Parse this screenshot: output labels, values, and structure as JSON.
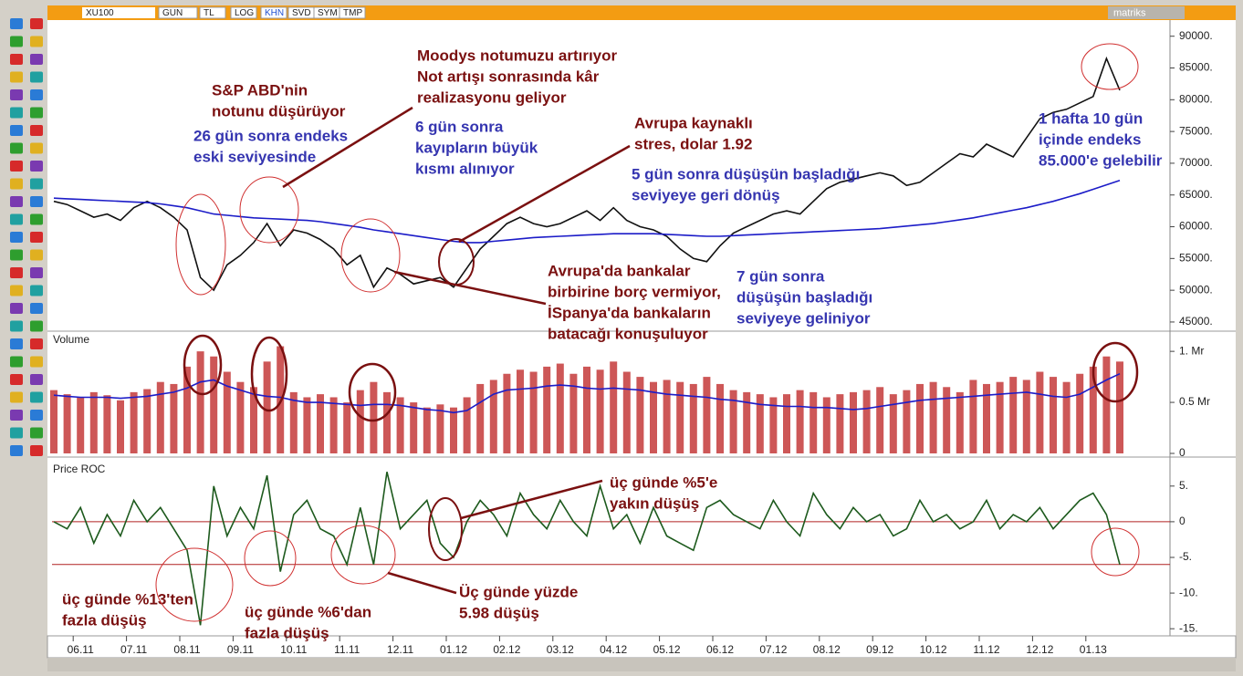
{
  "toolbar": {
    "symbol": "XU100",
    "buttons": [
      "GUN",
      "TL",
      "LOG",
      "KHN",
      "SVD",
      "SYM",
      "TMP"
    ],
    "brand": "matriks"
  },
  "chart_data": [
    {
      "type": "line",
      "categories": [
        null,
        null,
        "06.11",
        null,
        null,
        null,
        "07.11",
        null,
        null,
        null,
        "08.11",
        null,
        null,
        null,
        "09.11",
        null,
        null,
        null,
        "10.11",
        null,
        null,
        null,
        "11.11",
        null,
        null,
        null,
        "12.11",
        null,
        null,
        null,
        "01.12",
        null,
        null,
        null,
        "02.12",
        null,
        null,
        null,
        "03.12",
        null,
        null,
        null,
        "04.12",
        null,
        null,
        null,
        "05.12",
        null,
        null,
        null,
        "06.12",
        null,
        null,
        null,
        "07.12",
        null,
        null,
        null,
        "08.12",
        null,
        null,
        null,
        "09.12",
        null,
        null,
        null,
        "10.12",
        null,
        null,
        null,
        "11.12",
        null,
        null,
        null,
        "12.12",
        null,
        null,
        null,
        "01.13",
        null,
        null
      ],
      "series": [
        {
          "color": "#111111",
          "values": [
            64000,
            63500,
            62500,
            61500,
            62000,
            61000,
            63000,
            64000,
            63000,
            61500,
            59500,
            52000,
            50000,
            54000,
            55500,
            57500,
            60500,
            57000,
            59500,
            59000,
            58000,
            56500,
            54000,
            55500,
            50500,
            53500,
            52500,
            51000,
            51500,
            52000,
            50500,
            53500,
            56500,
            58500,
            60500,
            61500,
            60500,
            60000,
            60500,
            61500,
            62500,
            61000,
            63000,
            61000,
            60000,
            59500,
            58500,
            56500,
            55000,
            54500,
            57000,
            59000,
            60000,
            61000,
            62000,
            62500,
            62000,
            64000,
            66000,
            67000,
            67500,
            68000,
            68500,
            68000,
            66500,
            67000,
            68500,
            70000,
            71500,
            71000,
            73000,
            72000,
            71000,
            74000,
            77000,
            78000,
            78500,
            79500,
            80500,
            86500,
            81500
          ]
        },
        {
          "color": "#1c1cc8",
          "values": [
            64500,
            64400,
            64300,
            64200,
            64100,
            64000,
            63900,
            63800,
            63600,
            63300,
            63000,
            62500,
            62000,
            61800,
            61600,
            61400,
            61300,
            61200,
            61100,
            61000,
            60800,
            60500,
            60200,
            59900,
            59500,
            59200,
            58900,
            58600,
            58300,
            58000,
            57700,
            57500,
            57500,
            57700,
            57900,
            58100,
            58300,
            58400,
            58500,
            58600,
            58700,
            58800,
            58900,
            58900,
            58900,
            58900,
            58800,
            58700,
            58600,
            58500,
            58500,
            58600,
            58700,
            58800,
            58900,
            59000,
            59100,
            59200,
            59300,
            59400,
            59500,
            59600,
            59700,
            59900,
            60100,
            60300,
            60500,
            60800,
            61100,
            61400,
            61800,
            62200,
            62600,
            63000,
            63500,
            64000,
            64600,
            65200,
            65900,
            66600,
            67300
          ]
        }
      ],
      "ylim": [
        43700,
        92400
      ],
      "yticks": [
        {
          "value": 45000,
          "label": "45000."
        },
        {
          "value": 50000,
          "label": "50000."
        },
        {
          "value": 55000,
          "label": "55000."
        },
        {
          "value": 60000,
          "label": "60000."
        },
        {
          "value": 65000,
          "label": "65000."
        },
        {
          "value": 70000,
          "label": "70000."
        },
        {
          "value": 75000,
          "label": "75000."
        },
        {
          "value": 80000,
          "label": "80000."
        },
        {
          "value": 85000,
          "label": "85000."
        },
        {
          "value": 90000,
          "label": "90000."
        }
      ],
      "annotations": [
        {
          "color": "#7a1010",
          "lines": [
            "S&P ABD'nin",
            "notunu düşürüyor"
          ]
        },
        {
          "color": "#3535b0",
          "lines": [
            "26 gün sonra endeks",
            "eski seviyesinde"
          ]
        },
        {
          "color": "#7a1010",
          "lines": [
            "Moodys notumuzu artırıyor",
            "Not artışı sonrasında kâr",
            "realizasyonu geliyor"
          ]
        },
        {
          "color": "#3535b0",
          "lines": [
            "6 gün sonra",
            "kayıpların büyük",
            "kısmı alınıyor"
          ]
        },
        {
          "color": "#7a1010",
          "lines": [
            "Avrupa kaynaklı",
            "stres, dolar 1.92"
          ]
        },
        {
          "color": "#3535b0",
          "lines": [
            "5 gün sonra düşüşün başladığı",
            "seviyeye geri dönüş"
          ]
        },
        {
          "color": "#7a1010",
          "lines": [
            "Avrupa'da bankalar",
            "birbirine borç vermiyor,",
            "İSpanya'da bankaların",
            "batacağı konuşuluyor"
          ]
        },
        {
          "color": "#3535b0",
          "lines": [
            "7 gün sonra",
            "düşüşün başladığı",
            "seviyeye geliniyor"
          ]
        },
        {
          "color": "#3535b0",
          "lines": [
            "1 hafta 10 gün",
            "içinde endeks",
            "85.000'e gelebilir"
          ]
        }
      ]
    },
    {
      "type": "bar",
      "title": "Volume",
      "series": [
        {
          "type": "bar",
          "color": "#c43a3a",
          "values": [
            0.62,
            0.58,
            0.55,
            0.6,
            0.57,
            0.52,
            0.6,
            0.63,
            0.7,
            0.68,
            0.85,
            1.0,
            0.95,
            0.8,
            0.7,
            0.65,
            0.9,
            1.05,
            0.6,
            0.55,
            0.58,
            0.55,
            0.5,
            0.62,
            0.7,
            0.6,
            0.55,
            0.5,
            0.45,
            0.48,
            0.45,
            0.55,
            0.68,
            0.72,
            0.78,
            0.82,
            0.8,
            0.85,
            0.88,
            0.78,
            0.85,
            0.82,
            0.9,
            0.8,
            0.75,
            0.7,
            0.72,
            0.7,
            0.68,
            0.75,
            0.68,
            0.62,
            0.6,
            0.58,
            0.55,
            0.58,
            0.62,
            0.6,
            0.55,
            0.58,
            0.6,
            0.62,
            0.65,
            0.58,
            0.62,
            0.68,
            0.7,
            0.65,
            0.6,
            0.72,
            0.68,
            0.7,
            0.75,
            0.72,
            0.8,
            0.75,
            0.7,
            0.78,
            0.85,
            0.95,
            0.9
          ]
        },
        {
          "type": "line",
          "color": "#1c1cc8",
          "values": [
            0.57,
            0.56,
            0.55,
            0.55,
            0.55,
            0.54,
            0.55,
            0.56,
            0.58,
            0.6,
            0.64,
            0.7,
            0.72,
            0.66,
            0.62,
            0.58,
            0.56,
            0.55,
            0.52,
            0.5,
            0.5,
            0.49,
            0.48,
            0.47,
            0.48,
            0.48,
            0.47,
            0.45,
            0.43,
            0.42,
            0.4,
            0.42,
            0.5,
            0.58,
            0.62,
            0.63,
            0.64,
            0.66,
            0.67,
            0.66,
            0.64,
            0.63,
            0.64,
            0.63,
            0.62,
            0.6,
            0.58,
            0.57,
            0.56,
            0.55,
            0.53,
            0.52,
            0.5,
            0.48,
            0.47,
            0.46,
            0.46,
            0.45,
            0.45,
            0.44,
            0.43,
            0.44,
            0.46,
            0.48,
            0.5,
            0.52,
            0.53,
            0.54,
            0.55,
            0.56,
            0.57,
            0.58,
            0.59,
            0.6,
            0.58,
            0.56,
            0.55,
            0.58,
            0.65,
            0.72,
            0.78
          ]
        }
      ],
      "ylim": [
        0,
        1.18
      ],
      "yticks": [
        0,
        {
          "value": 0.5,
          "label": "0.5 Mr"
        },
        {
          "value": 1,
          "label": "1. Mr"
        }
      ]
    },
    {
      "type": "line",
      "title": "Price ROC",
      "series": [
        {
          "color": "#1d5a1d",
          "values": [
            0,
            -1,
            2,
            -3,
            1,
            -2,
            3,
            0,
            2,
            -1,
            -4,
            -14.5,
            5,
            -2,
            2,
            -1,
            6.5,
            -7,
            1,
            3,
            -1,
            -2,
            -6,
            2,
            -6,
            7,
            -1,
            1,
            3,
            -3,
            -5,
            0,
            3,
            1,
            -2,
            4,
            1,
            -1,
            3,
            0,
            -2,
            5,
            -1,
            1,
            -3,
            2,
            -2,
            -3,
            -4,
            2,
            3,
            1,
            0,
            -1,
            3,
            0,
            -2,
            4,
            1,
            -1,
            2,
            0,
            1,
            -2,
            -1,
            3,
            0,
            1,
            -1,
            0,
            3,
            -1,
            1,
            0,
            2,
            -1,
            1,
            3,
            4,
            1,
            -6
          ]
        }
      ],
      "hlines": [
        0,
        -6
      ],
      "hline_color": "#b02020",
      "ylim": [
        -16,
        8.3
      ],
      "yticks": [
        {
          "value": -15,
          "label": "-15."
        },
        {
          "value": -10,
          "label": "-10."
        },
        {
          "value": -5,
          "label": "-5."
        },
        0,
        {
          "value": 5,
          "label": "5."
        }
      ],
      "annotations": [
        {
          "color": "#7a1010",
          "lines": [
            "üç günde %5'e",
            "yakın düşüş"
          ]
        },
        {
          "color": "#7a1010",
          "lines": [
            "Üç günde yüzde",
            "5.98 düşüş"
          ]
        },
        {
          "color": "#7a1010",
          "lines": [
            "üç günde %13'ten",
            "fazla düşüş"
          ]
        },
        {
          "color": "#7a1010",
          "lines": [
            "üç günde %6'dan",
            "fazla düşüş"
          ]
        }
      ]
    }
  ]
}
